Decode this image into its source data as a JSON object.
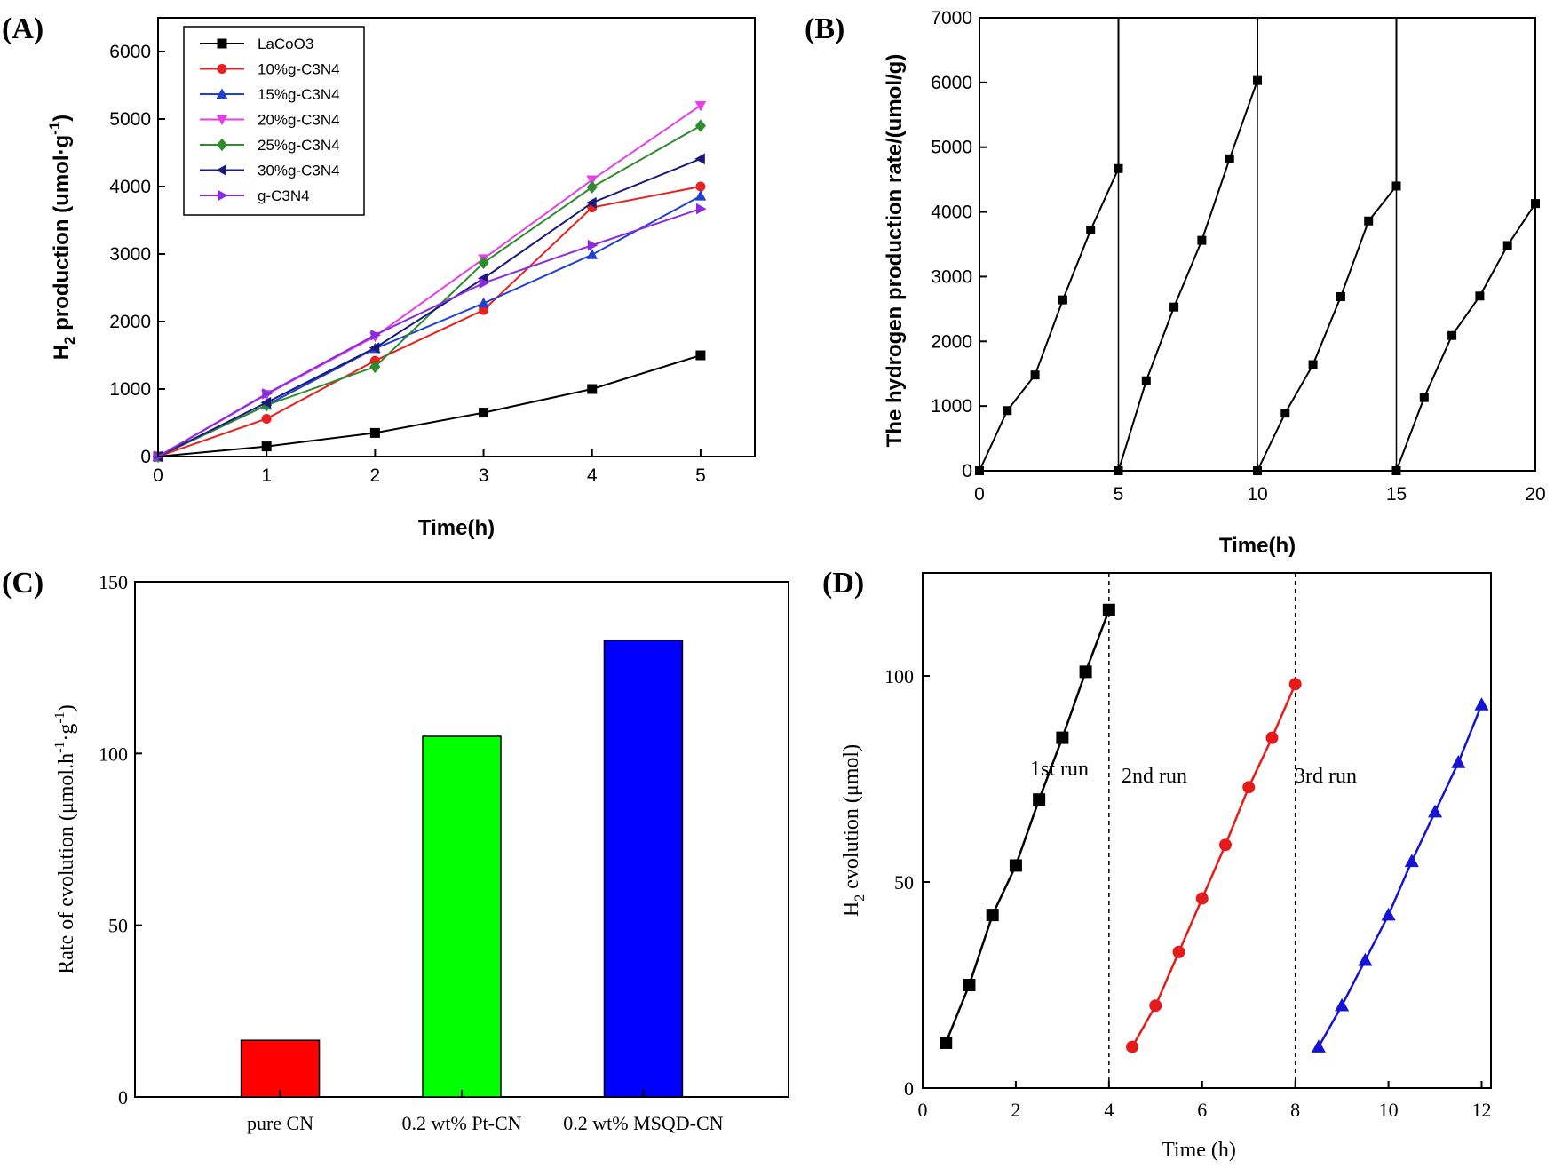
{
  "chart_data": [
    {
      "panel": "(A)",
      "type": "line",
      "xlabel": "Time(h)",
      "ylabel": "H2 production (umol·g-1)",
      "ylabel_parts": {
        "main": "H",
        "sub": "2",
        "mid": " production (umol·g",
        "sup": "-1",
        "end": ")"
      },
      "xlim": [
        0,
        5.5
      ],
      "ylim": [
        0,
        6500
      ],
      "xticks": [
        0,
        1,
        2,
        3,
        4,
        5
      ],
      "yticks": [
        0,
        1000,
        2000,
        3000,
        4000,
        5000,
        6000
      ],
      "legend": "top-left",
      "x": [
        0,
        1,
        2,
        3,
        4,
        5
      ],
      "series": [
        {
          "name": "LaCoO3",
          "color": "#000000",
          "marker": "square",
          "values": [
            0,
            150,
            350,
            650,
            1000,
            1500
          ]
        },
        {
          "name": "10%g-C3N4",
          "color": "#e8201e",
          "marker": "circle",
          "values": [
            0,
            560,
            1420,
            2170,
            3690,
            4000
          ]
        },
        {
          "name": "15%g-C3N4",
          "color": "#1f3fd6",
          "marker": "triangle-up",
          "values": [
            0,
            760,
            1600,
            2270,
            2990,
            3860
          ]
        },
        {
          "name": "20%g-C3N4",
          "color": "#e63fe6",
          "marker": "triangle-down",
          "values": [
            0,
            920,
            1780,
            2930,
            4100,
            5200
          ]
        },
        {
          "name": "25%g-C3N4",
          "color": "#2e8b2e",
          "marker": "diamond",
          "values": [
            0,
            760,
            1330,
            2870,
            3990,
            4900
          ]
        },
        {
          "name": "30%g-C3N4",
          "color": "#1a1a7a",
          "marker": "triangle-left",
          "values": [
            0,
            800,
            1610,
            2640,
            3760,
            4410
          ]
        },
        {
          "name": "g-C3N4",
          "color": "#8a2be2",
          "marker": "triangle-right",
          "values": [
            0,
            930,
            1800,
            2570,
            3130,
            3670
          ]
        }
      ]
    },
    {
      "panel": "(B)",
      "type": "line",
      "xlabel": "Time(h)",
      "ylabel": "The hydrogen production rate/(umol/g)",
      "xlim": [
        0,
        20
      ],
      "ylim": [
        0,
        7000
      ],
      "xticks": [
        0,
        5,
        10,
        15,
        20
      ],
      "yticks": [
        0,
        1000,
        2000,
        3000,
        4000,
        5000,
        6000,
        7000
      ],
      "series": [
        {
          "name": "hydrogen production rate",
          "color": "#000000",
          "marker": "square",
          "x": [
            0,
            1,
            2,
            3,
            4,
            5,
            5,
            6,
            7,
            8,
            9,
            10,
            10,
            11,
            12,
            13,
            14,
            15,
            15,
            16,
            17,
            18,
            19,
            20
          ],
          "values": [
            0,
            930,
            1480,
            2640,
            3720,
            4670,
            0,
            1390,
            2530,
            3560,
            4820,
            6030,
            0,
            890,
            1640,
            2690,
            3860,
            4400,
            0,
            1130,
            2090,
            2700,
            3480,
            4130
          ]
        }
      ],
      "spikes_to_top_at": [
        5,
        10,
        15
      ]
    },
    {
      "panel": "(C)",
      "type": "bar",
      "ylabel": "Rate of evolution (μmol.h-1·g-1)",
      "ylabel_parts": {
        "a": "Rate of evolution (μmol.h",
        "sup1": "-1",
        "b": "·g",
        "sup2": "-1",
        "c": ")"
      },
      "ylim": [
        0,
        150
      ],
      "yticks": [
        0,
        50,
        100,
        150
      ],
      "categories": [
        "pure CN",
        "0.2 wt% Pt-CN",
        "0.2 wt% MSQD-CN"
      ],
      "values": [
        16.5,
        105,
        133
      ],
      "colors": [
        "#ff0000",
        "#00ff00",
        "#0000ff"
      ]
    },
    {
      "panel": "(D)",
      "type": "line",
      "xlabel": "Time (h)",
      "ylabel": "H2 evolution (μmol)",
      "ylabel_parts": {
        "main": "H",
        "sub": "2",
        "end": " evolution (μmol)"
      },
      "xlim": [
        0,
        12.2
      ],
      "ylim": [
        0,
        125
      ],
      "xticks": [
        0,
        2,
        4,
        6,
        8,
        10,
        12
      ],
      "yticks": [
        0,
        50,
        100
      ],
      "dashed_vlines": [
        4,
        8
      ],
      "annotations": [
        "1st run",
        "2nd run",
        "3rd run"
      ],
      "series": [
        {
          "name": "1st run",
          "color": "#000000",
          "marker": "square",
          "x": [
            0.5,
            1,
            1.5,
            2,
            2.5,
            3,
            3.5,
            4
          ],
          "values": [
            11,
            25,
            42,
            54,
            70,
            85,
            101,
            116
          ]
        },
        {
          "name": "2nd run",
          "color": "#e51b1b",
          "marker": "circle",
          "x": [
            4.5,
            5,
            5.5,
            6,
            6.5,
            7,
            7.5,
            8
          ],
          "values": [
            10,
            20,
            33,
            46,
            59,
            73,
            85,
            98
          ]
        },
        {
          "name": "3rd run",
          "color": "#1414d2",
          "marker": "triangle-up",
          "x": [
            8.5,
            9,
            9.5,
            10,
            10.5,
            11,
            11.5,
            12
          ],
          "values": [
            10,
            20,
            31,
            42,
            55,
            67,
            79,
            93
          ]
        }
      ]
    }
  ]
}
